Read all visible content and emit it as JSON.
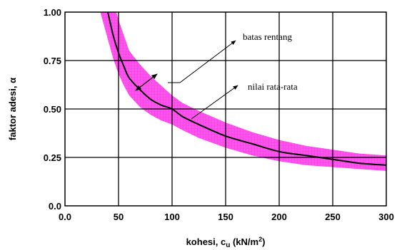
{
  "chart_data": {
    "type": "line",
    "xlabel_main": "kohesi, c",
    "xlabel_sub": "u",
    "xlabel_unit": " (kN/m",
    "xlabel_sup": "2",
    "xlabel_close": ")",
    "ylabel": "faktor adesi, α",
    "xlim": [
      0,
      300
    ],
    "ylim": [
      0,
      1
    ],
    "x_ticks": [
      "0.0",
      "50",
      "100",
      "150",
      "200",
      "250",
      "300"
    ],
    "x_tick_values": [
      0,
      50,
      100,
      150,
      200,
      250,
      300
    ],
    "y_ticks": [
      "0.0",
      "0.25",
      "0.50",
      "0.75",
      "1.00"
    ],
    "y_tick_values": [
      0,
      0.25,
      0.5,
      0.75,
      1.0
    ],
    "grid": true,
    "band_color": "#ff55ee",
    "line_color": "#000000",
    "series": [
      {
        "name": "nilai rata-rata",
        "x": [
          40,
          45,
          50,
          55,
          60,
          70,
          80,
          90,
          100,
          110,
          125,
          150,
          175,
          200,
          225,
          250,
          275,
          300
        ],
        "y": [
          1.0,
          0.88,
          0.79,
          0.72,
          0.66,
          0.6,
          0.55,
          0.52,
          0.5,
          0.46,
          0.42,
          0.36,
          0.32,
          0.28,
          0.26,
          0.24,
          0.22,
          0.21
        ]
      },
      {
        "name": "batas rentang (atas)",
        "x": [
          48,
          50,
          55,
          60,
          70,
          80,
          90,
          100,
          110,
          125,
          150,
          175,
          200,
          225,
          250,
          275,
          300
        ],
        "y": [
          1.0,
          0.96,
          0.88,
          0.8,
          0.73,
          0.67,
          0.62,
          0.57,
          0.53,
          0.49,
          0.43,
          0.38,
          0.34,
          0.31,
          0.29,
          0.27,
          0.26
        ]
      },
      {
        "name": "batas rentang (bawah)",
        "x": [
          33,
          35,
          40,
          45,
          50,
          55,
          60,
          70,
          80,
          90,
          100,
          110,
          125,
          150,
          175,
          200,
          225,
          250,
          275,
          300
        ],
        "y": [
          1.0,
          0.96,
          0.86,
          0.76,
          0.68,
          0.62,
          0.57,
          0.51,
          0.47,
          0.44,
          0.42,
          0.39,
          0.35,
          0.3,
          0.26,
          0.23,
          0.21,
          0.2,
          0.19,
          0.18
        ]
      }
    ],
    "annotations": [
      {
        "text": "batas rentang",
        "target_a": [
          70,
          0.6
        ],
        "target_b": [
          90,
          0.7
        ],
        "label_at": [
          305,
          270
        ]
      },
      {
        "text": "nilai rata-rata",
        "target": [
          100,
          0.5
        ],
        "label_at": [
          312,
          140
        ]
      }
    ]
  }
}
